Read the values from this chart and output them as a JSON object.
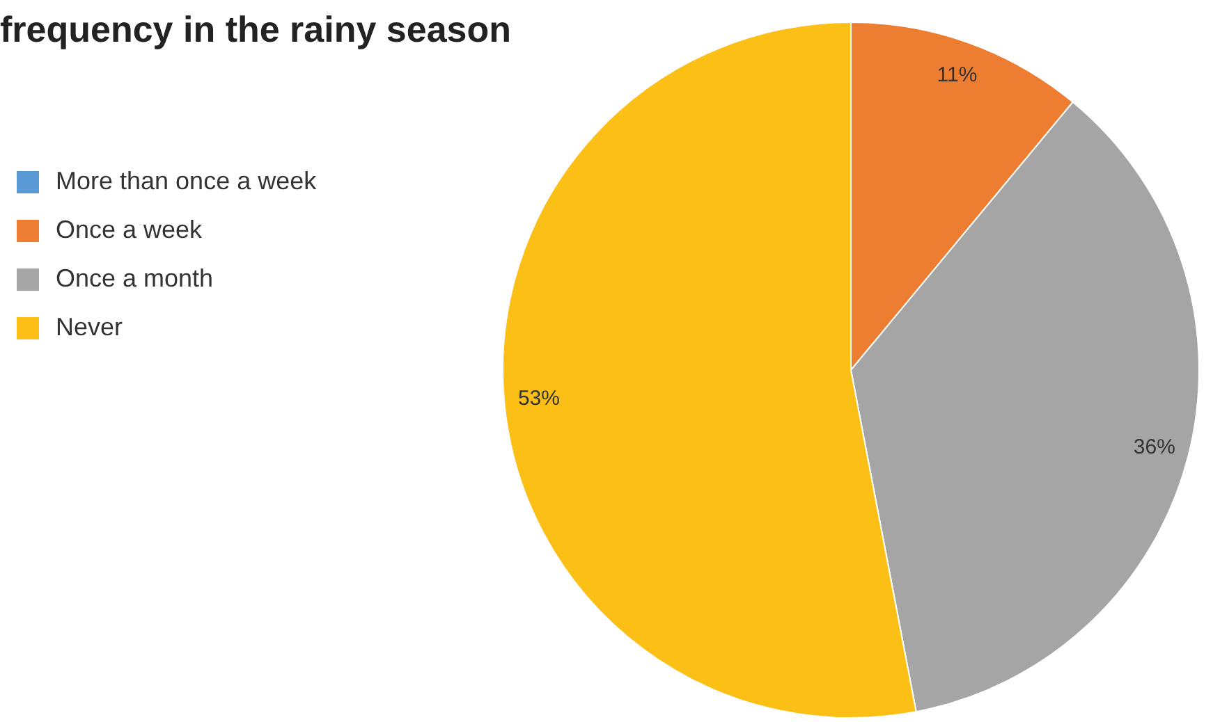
{
  "chart_data": {
    "type": "pie",
    "title": "frequency in the rainy season",
    "categories": [
      "More than once a week",
      "Once a week",
      "Once a month",
      "Never"
    ],
    "values": [
      0,
      11,
      36,
      53
    ],
    "colors": [
      "#5b9bd5",
      "#ed7d31",
      "#a5a5a5",
      "#fbbf16"
    ],
    "value_labels": [
      null,
      "11%",
      "36%",
      "53%"
    ],
    "legend": "top left"
  }
}
